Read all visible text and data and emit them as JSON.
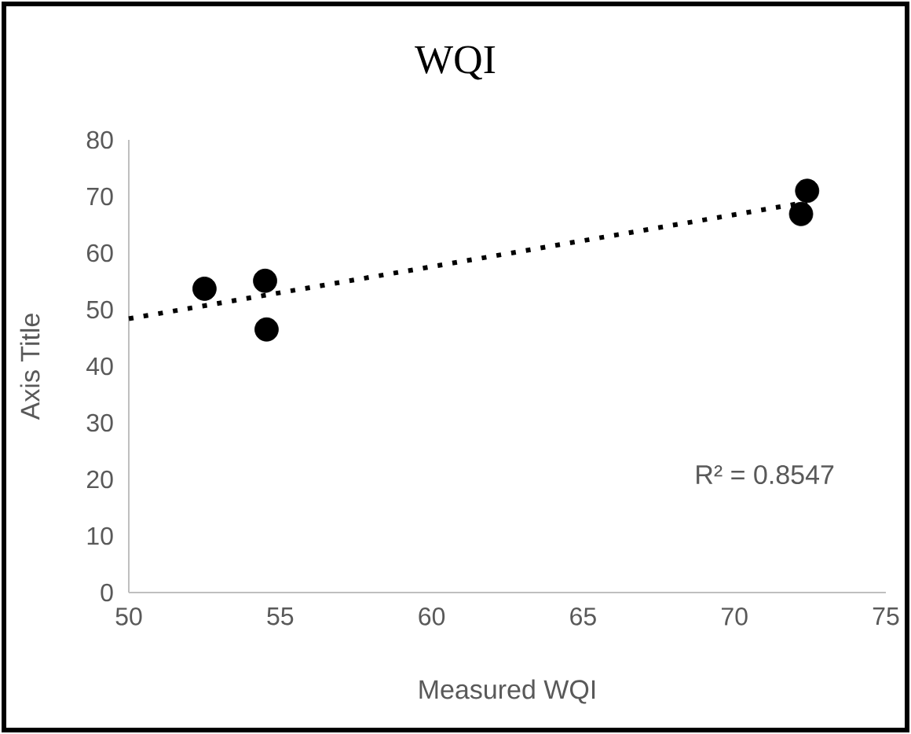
{
  "chart_data": {
    "type": "scatter",
    "title": "WQI",
    "xlabel": "Measured WQI",
    "ylabel": "Axis Title",
    "series": [
      {
        "color": "#000000",
        "x": [
          52.5,
          54.5,
          54.55,
          72.2,
          72.4
        ],
        "values": [
          53.7,
          55.1,
          46.5,
          66.9,
          71.0
        ],
        "marker": "circle"
      },
      {
        "type": "line",
        "color": "#000000",
        "x": [
          50,
          72.4
        ],
        "values": [
          48.4,
          69.0
        ],
        "line_style": "dotted",
        "marker": "none"
      }
    ],
    "annotations": [
      "R² = 0.8547"
    ],
    "xlim": [
      50,
      75
    ],
    "xticks": [
      50,
      55,
      60,
      65,
      70,
      75
    ],
    "ylim": [
      0,
      80
    ],
    "yticks": [
      0,
      10,
      20,
      30,
      40,
      50,
      60,
      70,
      80
    ],
    "grid": false
  }
}
